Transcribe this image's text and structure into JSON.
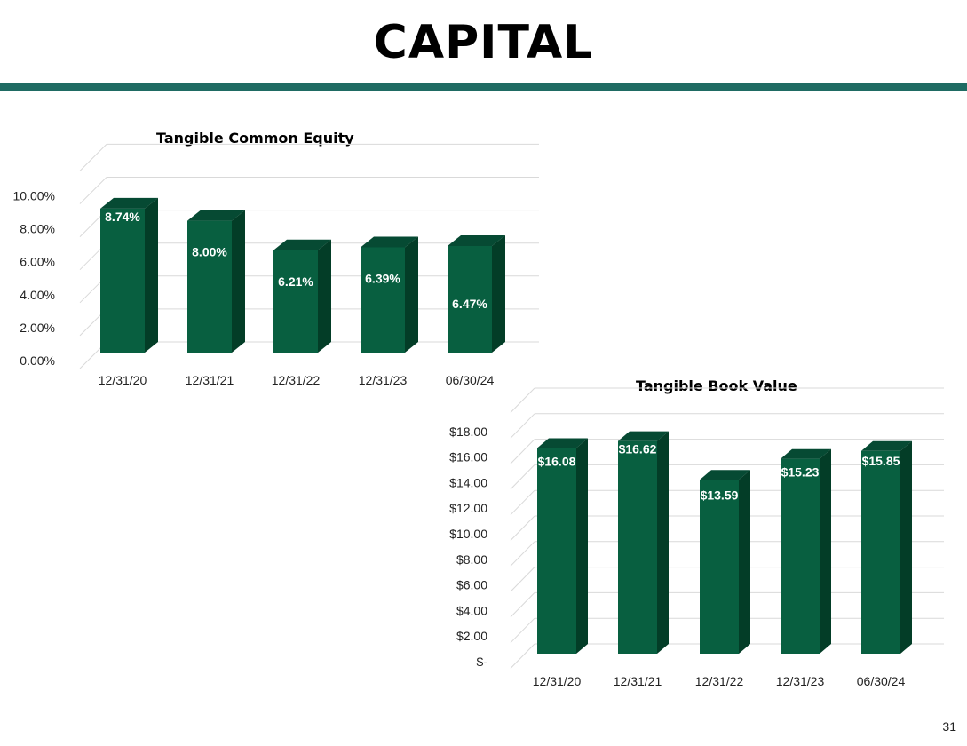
{
  "page": {
    "title": "CAPITAL",
    "page_number": "31"
  },
  "colors": {
    "bar_front": "#085f40",
    "bar_top": "#064a33",
    "bar_side": "#033d27",
    "grid": "#d9d9d9",
    "rule": "#1f6b63"
  },
  "chart_data": [
    {
      "type": "bar",
      "title": "Tangible Common Equity",
      "categories": [
        "12/31/20",
        "12/31/21",
        "12/31/22",
        "12/31/23",
        "06/30/24"
      ],
      "values": [
        8.74,
        8.0,
        6.21,
        6.39,
        6.47
      ],
      "data_labels": [
        "8.74%",
        "8.00%",
        "6.21%",
        "6.39%",
        "6.47%"
      ],
      "yticks": [
        "0.00%",
        "2.00%",
        "4.00%",
        "6.00%",
        "8.00%",
        "10.00%"
      ],
      "ylim": [
        0,
        10
      ],
      "xlabel": "",
      "ylabel": "",
      "grid": true
    },
    {
      "type": "bar",
      "title": "Tangible Book Value",
      "categories": [
        "12/31/20",
        "12/31/21",
        "12/31/22",
        "12/31/23",
        "06/30/24"
      ],
      "values": [
        16.08,
        16.62,
        13.59,
        15.23,
        15.85
      ],
      "data_labels": [
        "$16.08",
        "$16.62",
        "$13.59",
        "$15.23",
        "$15.85"
      ],
      "yticks": [
        "$-",
        "$2.00",
        "$4.00",
        "$6.00",
        "$8.00",
        "$10.00",
        "$12.00",
        "$14.00",
        "$16.00",
        "$18.00"
      ],
      "ylim": [
        0,
        18
      ],
      "xlabel": "",
      "ylabel": "",
      "grid": true
    }
  ]
}
